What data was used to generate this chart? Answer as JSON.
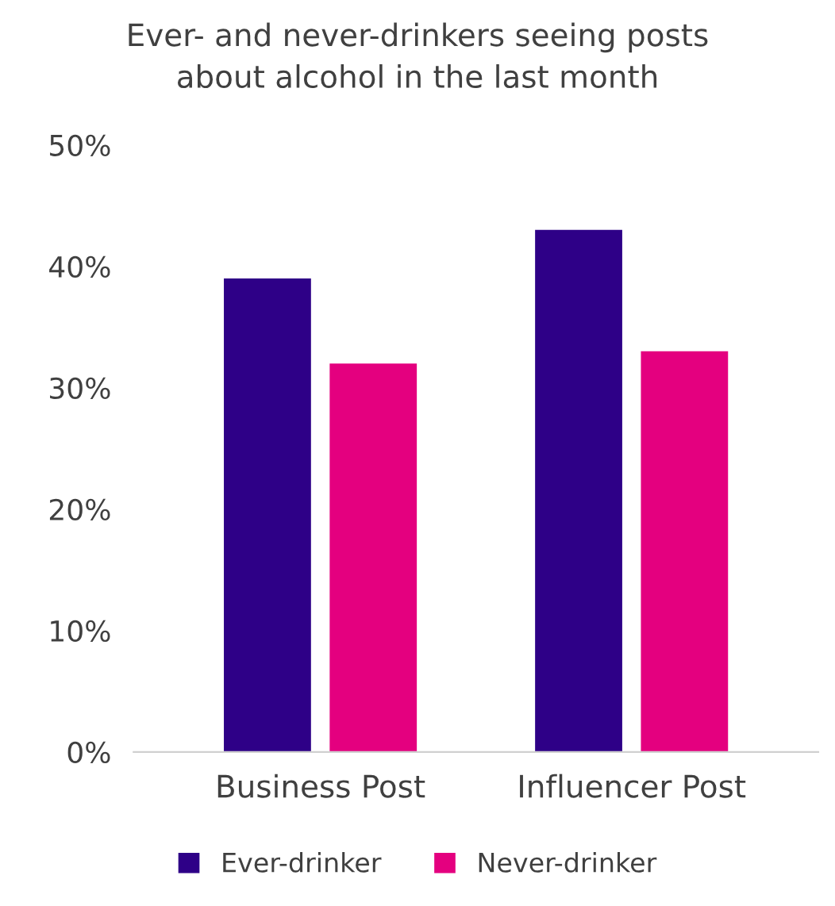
{
  "chart_data": {
    "type": "bar",
    "title": "Ever- and never-drinkers seeing posts\nabout alcohol in the last month",
    "categories": [
      "Business Post",
      "Influencer Post"
    ],
    "series": [
      {
        "name": "Ever-drinker",
        "color": "#2e0087",
        "values": [
          39,
          43
        ]
      },
      {
        "name": "Never-drinker",
        "color": "#e4007f",
        "values": [
          32,
          33
        ]
      }
    ],
    "ylim": [
      0,
      50
    ],
    "yticks": [
      {
        "value": 0,
        "label": "0%"
      },
      {
        "value": 10,
        "label": "10%"
      },
      {
        "value": 20,
        "label": "20%"
      },
      {
        "value": 30,
        "label": "30%"
      },
      {
        "value": 40,
        "label": "40%"
      },
      {
        "value": 50,
        "label": "50%"
      }
    ],
    "grid": false,
    "legend": "bottom"
  }
}
